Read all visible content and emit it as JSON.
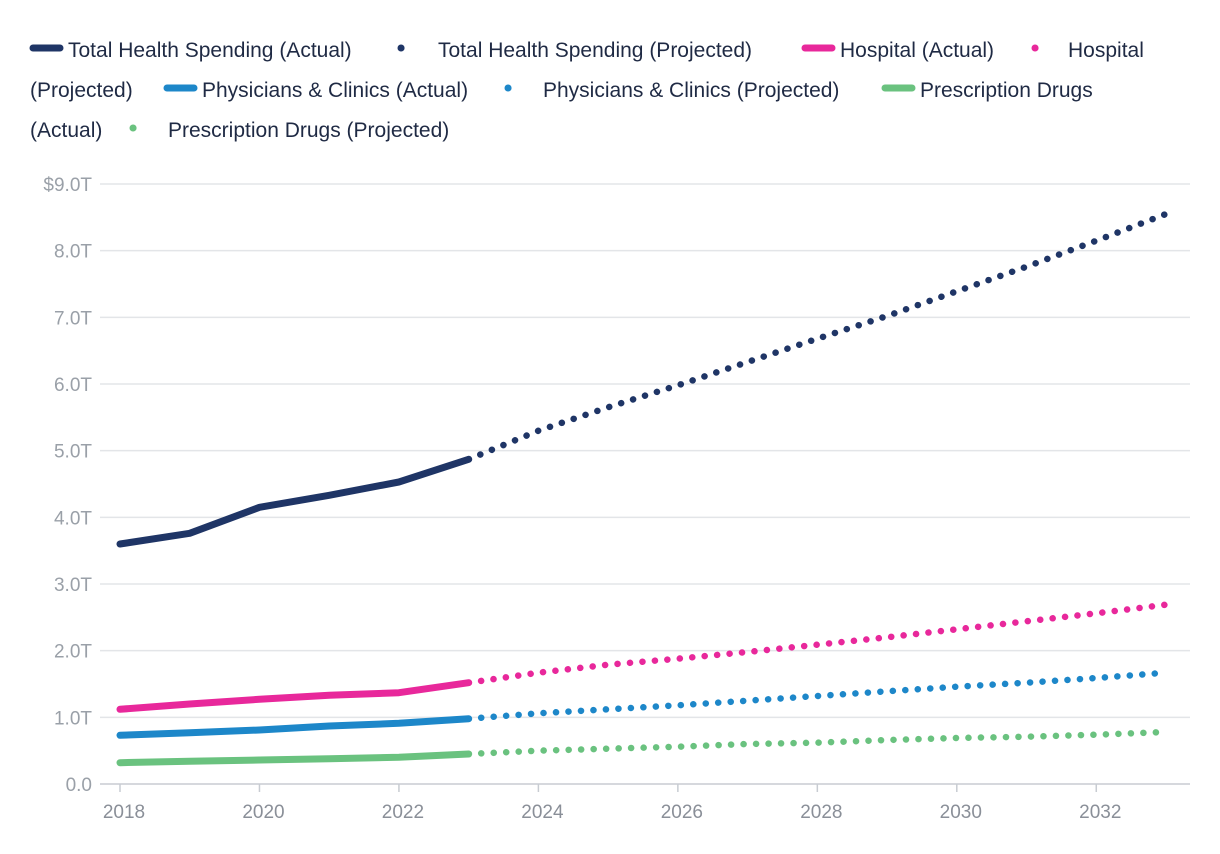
{
  "chart_data": {
    "type": "line",
    "title": "",
    "xlabel": "",
    "ylabel": "",
    "xlim": [
      2018,
      2033
    ],
    "ylim": [
      0,
      9
    ],
    "grid": true,
    "legend_position": "top",
    "x_ticks": [
      2018,
      2020,
      2022,
      2024,
      2026,
      2028,
      2030,
      2032
    ],
    "x_tick_labels": [
      "2018",
      "2020",
      "2022",
      "2024",
      "2026",
      "2028",
      "2030",
      "2032"
    ],
    "y_ticks": [
      0,
      1,
      2,
      3,
      4,
      5,
      6,
      7,
      8,
      9
    ],
    "y_tick_labels": [
      "0.0",
      "1.0T",
      "2.0T",
      "3.0T",
      "4.0T",
      "5.0T",
      "6.0T",
      "7.0T",
      "8.0T",
      "$9.0T"
    ],
    "series": [
      {
        "name": "Total Health Spending (Actual)",
        "color": "#1f3566",
        "style": "solid",
        "x": [
          2018,
          2019,
          2020,
          2021,
          2022,
          2023
        ],
        "values": [
          3.6,
          3.76,
          4.15,
          4.33,
          4.53,
          4.87
        ]
      },
      {
        "name": "Total Health Spending (Projected)",
        "color": "#1f3566",
        "style": "dotted",
        "x": [
          2023,
          2024,
          2025,
          2026,
          2027,
          2028,
          2029,
          2030,
          2031,
          2032,
          2033
        ],
        "values": [
          4.87,
          5.3,
          5.65,
          5.98,
          6.33,
          6.68,
          7.02,
          7.39,
          7.76,
          8.15,
          8.55
        ]
      },
      {
        "name": "Hospital (Actual)",
        "color": "#e8289b",
        "style": "solid",
        "x": [
          2018,
          2019,
          2020,
          2021,
          2022,
          2023
        ],
        "values": [
          1.12,
          1.2,
          1.27,
          1.33,
          1.37,
          1.52
        ]
      },
      {
        "name": "Hospital (Projected)",
        "color": "#e8289b",
        "style": "dotted",
        "x": [
          2023,
          2024,
          2025,
          2026,
          2027,
          2028,
          2029,
          2030,
          2031,
          2032,
          2033
        ],
        "values": [
          1.52,
          1.67,
          1.79,
          1.88,
          1.98,
          2.09,
          2.2,
          2.32,
          2.44,
          2.56,
          2.69
        ]
      },
      {
        "name": "Physicians & Clinics (Actual)",
        "color": "#1d87c9",
        "style": "solid",
        "x": [
          2018,
          2019,
          2020,
          2021,
          2022,
          2023
        ],
        "values": [
          0.73,
          0.77,
          0.81,
          0.87,
          0.91,
          0.98
        ]
      },
      {
        "name": "Physicians & Clinics (Projected)",
        "color": "#1d87c9",
        "style": "dotted",
        "x": [
          2023,
          2024,
          2025,
          2026,
          2027,
          2028,
          2029,
          2030,
          2031,
          2032,
          2033
        ],
        "values": [
          0.98,
          1.06,
          1.12,
          1.18,
          1.25,
          1.32,
          1.39,
          1.46,
          1.52,
          1.59,
          1.67
        ]
      },
      {
        "name": "Prescription Drugs (Actual)",
        "color": "#6ac27f",
        "style": "solid",
        "x": [
          2018,
          2019,
          2020,
          2021,
          2022,
          2023
        ],
        "values": [
          0.32,
          0.34,
          0.36,
          0.38,
          0.4,
          0.45
        ]
      },
      {
        "name": "Prescription Drugs (Projected)",
        "color": "#6ac27f",
        "style": "dotted",
        "x": [
          2023,
          2024,
          2025,
          2026,
          2027,
          2028,
          2029,
          2030,
          2031,
          2032,
          2033
        ],
        "values": [
          0.45,
          0.5,
          0.53,
          0.56,
          0.6,
          0.62,
          0.66,
          0.69,
          0.71,
          0.74,
          0.78
        ]
      }
    ]
  },
  "colors": {
    "grid": "#e3e5e8",
    "axis": "#c8ccd2",
    "tick_text": "#8a8f98",
    "legend_text": "#1f2a44"
  }
}
